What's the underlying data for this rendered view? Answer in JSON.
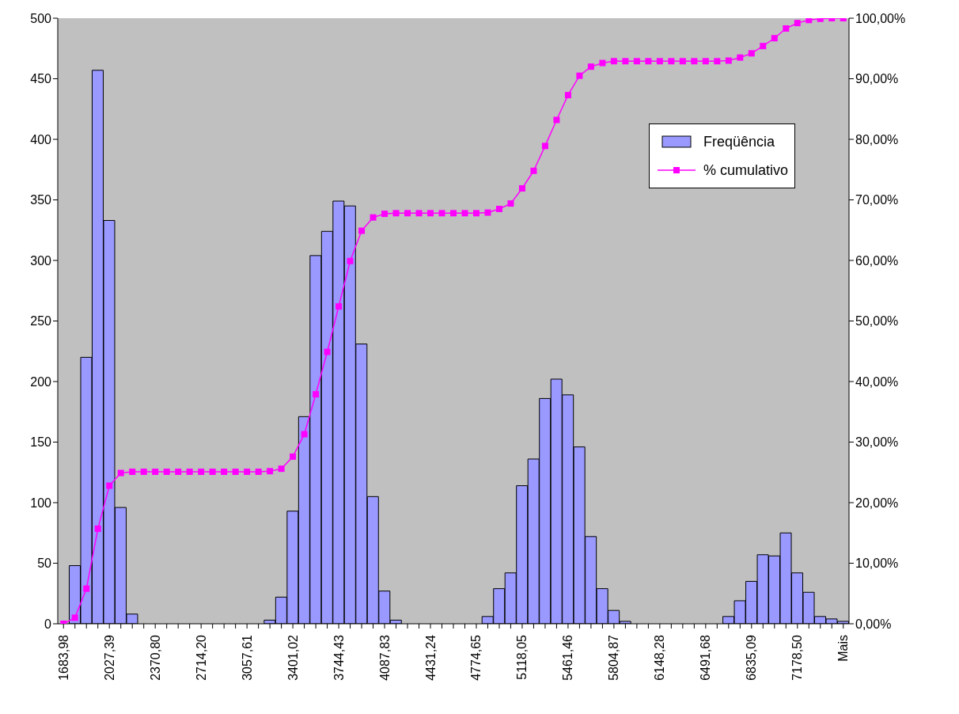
{
  "chart_data": {
    "type": "bar",
    "categories": [
      "1683,98",
      null,
      null,
      null,
      "2027,39",
      null,
      null,
      null,
      "2370,80",
      null,
      null,
      null,
      "2714,20",
      null,
      null,
      null,
      "3057,61",
      null,
      null,
      null,
      "3401,02",
      null,
      null,
      null,
      "3744,43",
      null,
      null,
      null,
      "4087,83",
      null,
      null,
      null,
      "4431,24",
      null,
      null,
      null,
      "4774,65",
      null,
      null,
      null,
      "5118,05",
      null,
      null,
      null,
      "5461,46",
      null,
      null,
      null,
      "5804,87",
      null,
      null,
      null,
      "6148,28",
      null,
      null,
      null,
      "6491,68",
      null,
      null,
      null,
      "6835,09",
      null,
      null,
      null,
      "7178,50",
      null,
      null,
      null,
      "Mais"
    ],
    "series": [
      {
        "name": "Freqüência",
        "color": "#9999ff",
        "values": [
          null,
          48,
          220,
          457,
          333,
          96,
          8,
          0,
          0,
          0,
          0,
          0,
          0,
          0,
          0,
          0,
          0,
          0,
          3,
          22,
          93,
          171,
          304,
          324,
          349,
          345,
          231,
          105,
          27,
          3,
          0,
          0,
          0,
          0,
          0,
          0,
          0,
          6,
          29,
          42,
          114,
          136,
          186,
          202,
          189,
          146,
          72,
          29,
          11,
          2,
          0,
          0,
          0,
          0,
          0,
          0,
          0,
          0,
          6,
          19,
          35,
          57,
          56,
          75,
          42,
          26,
          6,
          4,
          2
        ]
      },
      {
        "name": "% cumulativo",
        "type": "line",
        "axis": "y2",
        "color": "#ff00ff",
        "marker": "square",
        "values": [
          0,
          1.0,
          5.8,
          15.7,
          22.8,
          24.9,
          25.1,
          25.1,
          25.1,
          25.1,
          25.1,
          25.1,
          25.1,
          25.1,
          25.1,
          25.1,
          25.1,
          25.1,
          25.2,
          25.6,
          27.6,
          31.3,
          37.9,
          44.9,
          52.4,
          59.9,
          64.9,
          67.1,
          67.7,
          67.8,
          67.8,
          67.8,
          67.8,
          67.8,
          67.8,
          67.8,
          67.8,
          67.9,
          68.5,
          69.4,
          71.9,
          74.8,
          78.9,
          83.2,
          87.3,
          90.5,
          92.0,
          92.6,
          92.9,
          92.9,
          92.9,
          92.9,
          92.9,
          92.9,
          92.9,
          92.9,
          92.9,
          92.9,
          93.0,
          93.5,
          94.2,
          95.4,
          96.7,
          98.3,
          99.2,
          99.7,
          99.9,
          100.0,
          100.0
        ]
      }
    ],
    "ylim": [
      0,
      500
    ],
    "yticks": [
      0,
      50,
      100,
      150,
      200,
      250,
      300,
      350,
      400,
      450,
      500
    ],
    "y2lim": [
      0,
      100
    ],
    "y2ticks": [
      {
        "value": 0,
        "label": "0,00%"
      },
      {
        "value": 10,
        "label": "10,00%"
      },
      {
        "value": 20,
        "label": "20,00%"
      },
      {
        "value": 30,
        "label": "30,00%"
      },
      {
        "value": 40,
        "label": "40,00%"
      },
      {
        "value": 50,
        "label": "50,00%"
      },
      {
        "value": 60,
        "label": "60,00%"
      },
      {
        "value": 70,
        "label": "70,00%"
      },
      {
        "value": 80,
        "label": "80,00%"
      },
      {
        "value": 90,
        "label": "90,00%"
      },
      {
        "value": 100,
        "label": "100,00%"
      }
    ],
    "legend": "top right",
    "grid": false
  }
}
